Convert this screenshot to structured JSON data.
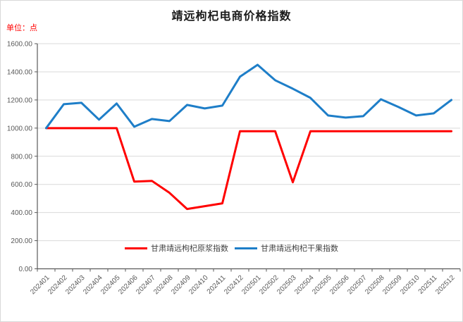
{
  "header": {
    "title": "靖远枸杞电商价格指数",
    "unit_label": "单位：点"
  },
  "colors": {
    "axis": "#595959",
    "gridline": "#d9d9d9",
    "tick_text": "#595959",
    "legend_text": "#404040",
    "unit_text": "#ff0000",
    "title_text": "#1a1a1a",
    "raw_pulp_red": "#ff0000",
    "dried_fruit_blue": "#1e7ec8"
  },
  "chart_data": {
    "type": "line",
    "title": "靖远枸杞电商价格指数",
    "unit": "单位：点",
    "categories": [
      "202401",
      "202402",
      "202403",
      "202404",
      "202405",
      "202406",
      "202407",
      "202408",
      "202409",
      "202410",
      "202411",
      "202412",
      "202501",
      "202502",
      "202503",
      "202504",
      "202505",
      "202506",
      "202507",
      "202508",
      "202509",
      "202510",
      "202511",
      "202512"
    ],
    "series": [
      {
        "name": "甘肃靖远枸杞原浆指数",
        "color": "#ff0000",
        "values": [
          1000,
          1000,
          1000,
          1000,
          1000,
          620,
          625,
          540,
          425,
          445,
          465,
          978,
          978,
          978,
          615,
          978,
          978,
          978,
          978,
          978,
          978,
          978,
          978,
          978
        ]
      },
      {
        "name": "甘肃靖远枸杞干果指数",
        "color": "#1e7ec8",
        "values": [
          1000,
          1170,
          1180,
          1060,
          1175,
          1010,
          1065,
          1050,
          1165,
          1140,
          1160,
          1365,
          1450,
          1340,
          1280,
          1215,
          1090,
          1075,
          1085,
          1205,
          1150,
          1090,
          1105,
          1200
        ]
      }
    ],
    "ylim": [
      0,
      1600
    ],
    "yticks": [
      "0.00",
      "200.00",
      "400.00",
      "600.00",
      "800.00",
      "1000.00",
      "1200.00",
      "1400.00",
      "1600.00"
    ],
    "xlabel": "",
    "ylabel": "",
    "grid": true,
    "legend_position": "bottom-center"
  }
}
